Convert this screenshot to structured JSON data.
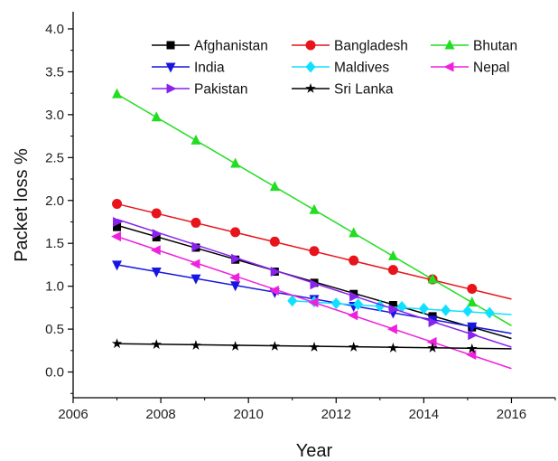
{
  "chart_data": {
    "type": "line",
    "xlabel": "Year",
    "ylabel": "Packet loss %",
    "xlim": [
      2006,
      2017
    ],
    "ylim": [
      -0.3,
      4.2
    ],
    "x_ticks": [
      2006,
      2008,
      2010,
      2012,
      2014,
      2016
    ],
    "y_ticks": [
      0.0,
      0.5,
      1.0,
      1.5,
      2.0,
      2.5,
      3.0,
      3.5,
      4.0
    ],
    "x_tick_labels": [
      "2006",
      "2008",
      "2010",
      "2012",
      "2014",
      "2016"
    ],
    "y_tick_labels": [
      "0.0",
      "0.5",
      "1.0",
      "1.5",
      "2.0",
      "2.5",
      "3.0",
      "3.5",
      "4.0"
    ],
    "grid": false,
    "legend_position": "top-right",
    "series": [
      {
        "name": "Afghanistan",
        "color": "#000000",
        "marker": "square",
        "x": [
          2007.0,
          2007.9,
          2008.8,
          2009.7,
          2010.6,
          2011.5,
          2012.4,
          2013.3,
          2014.2,
          2015.1
        ],
        "y": [
          1.69,
          1.57,
          1.45,
          1.31,
          1.17,
          1.04,
          0.91,
          0.78,
          0.65,
          0.52
        ],
        "fit": [
          [
            2007,
            1.71
          ],
          [
            2016,
            0.39
          ]
        ]
      },
      {
        "name": "Bangladesh",
        "color": "#e8141b",
        "marker": "circle",
        "x": [
          2007.0,
          2007.9,
          2008.8,
          2009.7,
          2010.6,
          2011.5,
          2012.4,
          2013.3,
          2014.2,
          2015.1
        ],
        "y": [
          1.96,
          1.85,
          1.74,
          1.63,
          1.52,
          1.41,
          1.3,
          1.19,
          1.08,
          0.97
        ],
        "fit": [
          [
            2007,
            1.96
          ],
          [
            2016,
            0.85
          ]
        ]
      },
      {
        "name": "Bhutan",
        "color": "#22dd22",
        "marker": "triangle-up",
        "x": [
          2007.0,
          2007.9,
          2008.8,
          2009.7,
          2010.6,
          2011.5,
          2012.4,
          2013.3,
          2014.2,
          2015.1
        ],
        "y": [
          3.24,
          2.97,
          2.7,
          2.43,
          2.16,
          1.89,
          1.62,
          1.35,
          1.08,
          0.81
        ],
        "fit": [
          [
            2007,
            3.24
          ],
          [
            2016,
            0.54
          ]
        ]
      },
      {
        "name": "India",
        "color": "#1616e0",
        "marker": "triangle-down",
        "x": [
          2007.0,
          2007.9,
          2008.8,
          2009.7,
          2010.6,
          2011.5,
          2012.4,
          2013.3,
          2014.2,
          2015.1
        ],
        "y": [
          1.25,
          1.17,
          1.09,
          1.01,
          0.93,
          0.85,
          0.77,
          0.69,
          0.61,
          0.53
        ],
        "fit": [
          [
            2007,
            1.25
          ],
          [
            2016,
            0.45
          ]
        ]
      },
      {
        "name": "Maldives",
        "color": "#10e0ff",
        "marker": "diamond",
        "x": [
          2011.0,
          2011.5,
          2012.0,
          2012.5,
          2013.0,
          2013.5,
          2014.0,
          2014.5,
          2015.0,
          2015.5
        ],
        "y": [
          0.83,
          0.82,
          0.8,
          0.79,
          0.77,
          0.76,
          0.74,
          0.72,
          0.71,
          0.69
        ],
        "fit": [
          [
            2011,
            0.83
          ],
          [
            2016,
            0.67
          ]
        ]
      },
      {
        "name": "Nepal",
        "color": "#ee22dd",
        "marker": "triangle-left",
        "x": [
          2007.0,
          2007.9,
          2008.8,
          2009.7,
          2010.6,
          2011.5,
          2012.4,
          2013.3,
          2014.2,
          2015.1
        ],
        "y": [
          1.58,
          1.42,
          1.26,
          1.1,
          0.95,
          0.81,
          0.66,
          0.5,
          0.35,
          0.2
        ],
        "fit": [
          [
            2007,
            1.58
          ],
          [
            2016,
            0.04
          ]
        ]
      },
      {
        "name": "Pakistan",
        "color": "#8822ee",
        "marker": "triangle-right",
        "x": [
          2007.0,
          2007.9,
          2008.8,
          2009.7,
          2010.6,
          2011.5,
          2012.4,
          2013.3,
          2014.2,
          2015.1
        ],
        "y": [
          1.75,
          1.61,
          1.46,
          1.32,
          1.17,
          1.02,
          0.88,
          0.73,
          0.58,
          0.43
        ],
        "fit": [
          [
            2007,
            1.78
          ],
          [
            2016,
            0.29
          ]
        ]
      },
      {
        "name": "Sri Lanka",
        "color": "#000000",
        "marker": "star",
        "x": [
          2007.0,
          2007.9,
          2008.8,
          2009.7,
          2010.6,
          2011.5,
          2012.4,
          2013.3,
          2014.2,
          2015.1
        ],
        "y": [
          0.33,
          0.32,
          0.31,
          0.3,
          0.3,
          0.29,
          0.29,
          0.28,
          0.28,
          0.27
        ],
        "fit": [
          [
            2007,
            0.33
          ],
          [
            2016,
            0.27
          ]
        ]
      }
    ]
  }
}
